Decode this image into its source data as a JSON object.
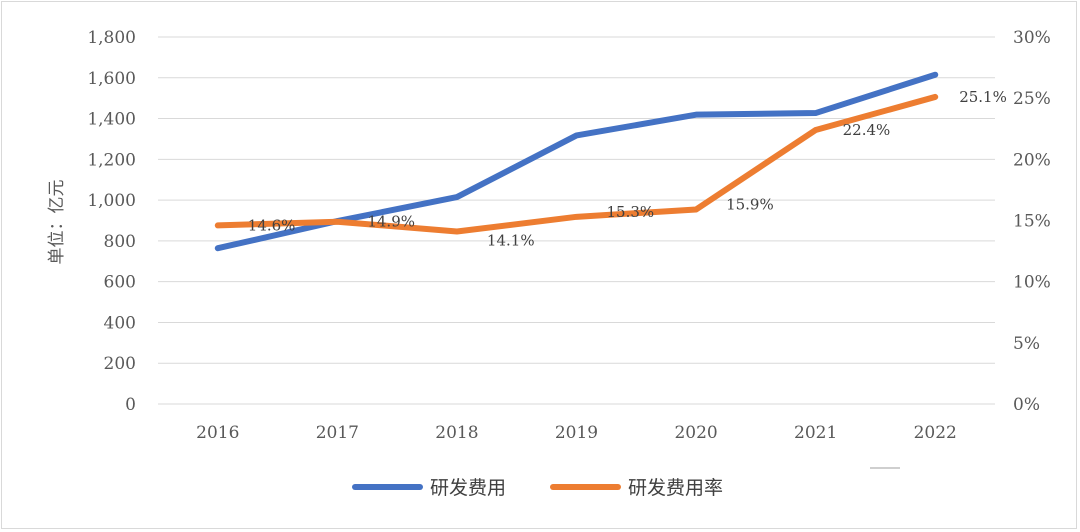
{
  "colors": {
    "rd_expense": "#4472c4",
    "rd_rate": "#ed7d31",
    "grid": "#d9d9d9",
    "tick": "#595959",
    "label": "#404040"
  },
  "chart_data": {
    "type": "line",
    "categories": [
      "2016",
      "2017",
      "2018",
      "2019",
      "2020",
      "2021",
      "2022"
    ],
    "ylabel": "单位：亿元",
    "y_left": {
      "range": [
        0,
        1800
      ],
      "ticks": [
        0,
        200,
        400,
        600,
        800,
        1000,
        1200,
        1400,
        1600,
        1800
      ],
      "tick_labels": [
        "0",
        "200",
        "400",
        "600",
        "800",
        "1,000",
        "1,200",
        "1,400",
        "1,600",
        "1,800"
      ]
    },
    "y_right": {
      "range": [
        0,
        30
      ],
      "ticks": [
        0,
        5,
        10,
        15,
        20,
        25,
        30
      ],
      "tick_labels": [
        "0%",
        "5%",
        "10%",
        "15%",
        "20%",
        "25%",
        "30%"
      ]
    },
    "series": [
      {
        "name": "研发费用",
        "axis": "left",
        "color": "#4472c4",
        "values": [
          764,
          897,
          1015,
          1317,
          1419,
          1427,
          1615
        ]
      },
      {
        "name": "研发费用率",
        "axis": "right",
        "color": "#ed7d31",
        "values": [
          14.6,
          14.9,
          14.1,
          15.3,
          15.9,
          22.4,
          25.1
        ],
        "data_labels": [
          "14.6%",
          "14.9%",
          "14.1%",
          "15.3%",
          "15.9%",
          "22.4%",
          "25.1%"
        ]
      }
    ],
    "legend": "bottom",
    "grid": true
  }
}
